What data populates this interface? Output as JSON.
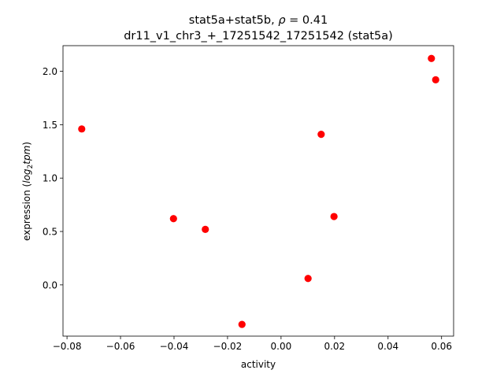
{
  "chart_data": {
    "type": "scatter",
    "title_line1": "stat5a+stat5b, ",
    "title_rho": "ρ",
    "title_rho_value": " = 0.41",
    "title_line2": "dr11_v1_chr3_+_17251542_17251542 (stat5a)",
    "xlabel": "activity",
    "ylabel_prefix": "expression (",
    "ylabel_math_log": "log",
    "ylabel_math_sub": "2",
    "ylabel_math_tpm": "tpm",
    "ylabel_suffix": ")",
    "xlim": [
      -0.0815,
      0.0645
    ],
    "ylim": [
      -0.48,
      2.24
    ],
    "xticks": [
      -0.08,
      -0.06,
      -0.04,
      -0.02,
      0.0,
      0.02,
      0.04,
      0.06
    ],
    "xtick_labels": [
      "−0.08",
      "−0.06",
      "−0.04",
      "−0.02",
      "0.00",
      "0.02",
      "0.04",
      "0.06"
    ],
    "yticks": [
      0.0,
      0.5,
      1.0,
      1.5,
      2.0
    ],
    "ytick_labels": [
      "0.0",
      "0.5",
      "1.0",
      "1.5",
      "2.0"
    ],
    "grid": false,
    "marker_color": "#ff0000",
    "points": [
      {
        "x": -0.0745,
        "y": 1.46
      },
      {
        "x": -0.0402,
        "y": 0.62
      },
      {
        "x": -0.0283,
        "y": 0.52
      },
      {
        "x": -0.0146,
        "y": -0.37
      },
      {
        "x": 0.0101,
        "y": 0.06
      },
      {
        "x": 0.015,
        "y": 1.41
      },
      {
        "x": 0.0198,
        "y": 0.64
      },
      {
        "x": 0.0562,
        "y": 2.12
      },
      {
        "x": 0.0578,
        "y": 1.92
      }
    ]
  }
}
